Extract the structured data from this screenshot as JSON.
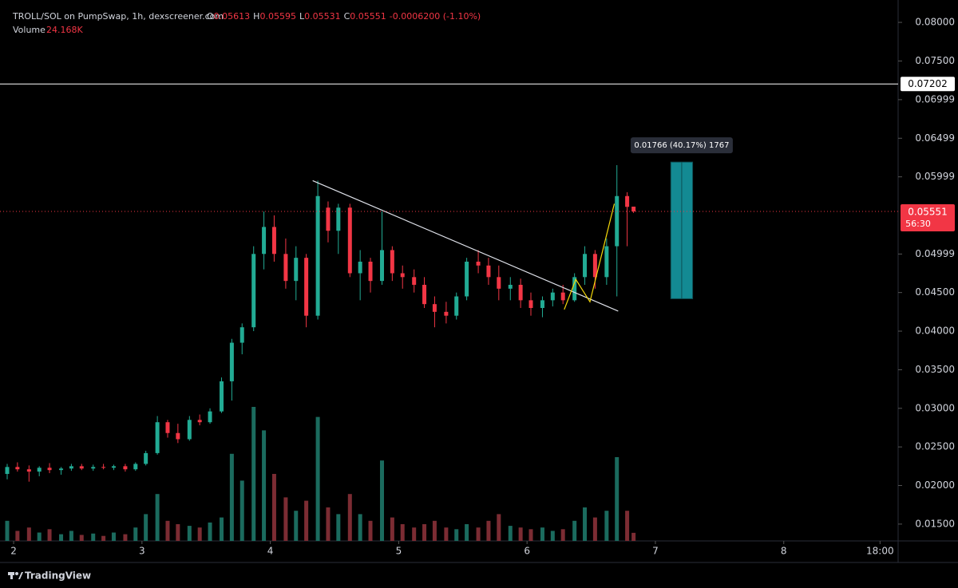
{
  "chart_data": {
    "type": "candlestick",
    "header": {
      "symbol": "TROLL/SOL on PumpSwap, 1h, dexscreener.com",
      "open_label": "O",
      "high_label": "H",
      "low_label": "L",
      "close_label": "C",
      "change_label": "-0.0006200 (-1.10%)",
      "volume_name": "Volume",
      "volume_label": "24.168K"
    },
    "countdown": "56:30",
    "brand": "TradingView",
    "colors": {
      "up": "#22ab94",
      "down": "#f23645",
      "up_volume": "#1b6b5e",
      "down_volume": "#7c2c33",
      "measure": "#138a93"
    },
    "xlim": [
      1.894,
      8.891
    ],
    "xticks": [
      2,
      3,
      4,
      5,
      6,
      7,
      8,
      {
        "value": 8.75,
        "label": "18:00"
      }
    ],
    "ylim": [
      0.01282,
      0.0829
    ],
    "yticks": [
      {
        "value": 0.08,
        "label": "0.08000"
      },
      {
        "value": 0.075,
        "label": "0.07500"
      },
      {
        "value": 0.06999,
        "label": "0.06999"
      },
      {
        "value": 0.06499,
        "label": "0.06499"
      },
      {
        "value": 0.05999,
        "label": "0.05999"
      },
      {
        "value": 0.04999,
        "label": "0.04999"
      },
      {
        "value": 0.045,
        "label": "0.04500"
      },
      {
        "value": 0.04,
        "label": "0.04000"
      },
      {
        "value": 0.035,
        "label": "0.03500"
      },
      {
        "value": 0.03,
        "label": "0.03000"
      },
      {
        "value": 0.025,
        "label": "0.02500"
      },
      {
        "value": 0.02,
        "label": "0.02000"
      },
      {
        "value": 0.015,
        "label": "0.01500"
      }
    ],
    "grid": false,
    "vlim": [
      0,
      1000000
    ],
    "candle_fields": [
      "x",
      "open",
      "high",
      "low",
      "close",
      "volume"
    ],
    "candles": [
      [
        1.95,
        0.0215,
        0.0228,
        0.0208,
        0.0224,
        60000
      ],
      [
        2.03,
        0.0224,
        0.023,
        0.0218,
        0.0221,
        30000
      ],
      [
        2.12,
        0.0221,
        0.0226,
        0.0205,
        0.0218,
        40000
      ],
      [
        2.2,
        0.0218,
        0.0225,
        0.0212,
        0.0223,
        25000
      ],
      [
        2.28,
        0.0223,
        0.0229,
        0.0216,
        0.022,
        35000
      ],
      [
        2.37,
        0.022,
        0.0224,
        0.0214,
        0.0222,
        20000
      ],
      [
        2.45,
        0.0222,
        0.0228,
        0.0219,
        0.0225,
        30000
      ],
      [
        2.53,
        0.0225,
        0.0228,
        0.022,
        0.0222,
        18000
      ],
      [
        2.62,
        0.0222,
        0.0227,
        0.0219,
        0.0224,
        22000
      ],
      [
        2.7,
        0.0224,
        0.0228,
        0.0221,
        0.0223,
        15000
      ],
      [
        2.78,
        0.0223,
        0.0227,
        0.022,
        0.0225,
        25000
      ],
      [
        2.87,
        0.0225,
        0.0228,
        0.0218,
        0.0221,
        20000
      ],
      [
        2.95,
        0.0221,
        0.023,
        0.0219,
        0.0228,
        40000
      ],
      [
        3.03,
        0.0228,
        0.0245,
        0.0226,
        0.0242,
        80000
      ],
      [
        3.12,
        0.0242,
        0.029,
        0.024,
        0.0282,
        140000
      ],
      [
        3.2,
        0.0282,
        0.0285,
        0.0262,
        0.0268,
        60000
      ],
      [
        3.28,
        0.0268,
        0.028,
        0.0255,
        0.026,
        50000
      ],
      [
        3.37,
        0.026,
        0.029,
        0.0258,
        0.0285,
        45000
      ],
      [
        3.45,
        0.0285,
        0.0292,
        0.0278,
        0.0282,
        40000
      ],
      [
        3.53,
        0.0282,
        0.03,
        0.028,
        0.0296,
        55000
      ],
      [
        3.62,
        0.0296,
        0.034,
        0.0294,
        0.0335,
        70000
      ],
      [
        3.7,
        0.0335,
        0.039,
        0.031,
        0.0385,
        260000
      ],
      [
        3.78,
        0.0385,
        0.041,
        0.037,
        0.0405,
        180000
      ],
      [
        3.87,
        0.0405,
        0.051,
        0.04,
        0.05,
        400000
      ],
      [
        3.95,
        0.05,
        0.0555,
        0.048,
        0.0535,
        330000
      ],
      [
        4.03,
        0.0535,
        0.055,
        0.049,
        0.05,
        200000
      ],
      [
        4.12,
        0.05,
        0.052,
        0.0455,
        0.0465,
        130000
      ],
      [
        4.2,
        0.0465,
        0.051,
        0.044,
        0.0495,
        90000
      ],
      [
        4.28,
        0.0495,
        0.05,
        0.0405,
        0.042,
        120000
      ],
      [
        4.37,
        0.042,
        0.0595,
        0.0415,
        0.0575,
        370000
      ],
      [
        4.45,
        0.056,
        0.0568,
        0.0515,
        0.053,
        100000
      ],
      [
        4.53,
        0.053,
        0.0565,
        0.05,
        0.056,
        80000
      ],
      [
        4.62,
        0.056,
        0.0565,
        0.047,
        0.0475,
        140000
      ],
      [
        4.7,
        0.0475,
        0.0505,
        0.044,
        0.049,
        80000
      ],
      [
        4.78,
        0.049,
        0.0495,
        0.045,
        0.0465,
        60000
      ],
      [
        4.87,
        0.0465,
        0.0555,
        0.046,
        0.0505,
        240000
      ],
      [
        4.95,
        0.0505,
        0.051,
        0.0465,
        0.0475,
        70000
      ],
      [
        5.03,
        0.0475,
        0.0485,
        0.0455,
        0.047,
        50000
      ],
      [
        5.12,
        0.047,
        0.048,
        0.045,
        0.046,
        40000
      ],
      [
        5.2,
        0.046,
        0.047,
        0.043,
        0.0435,
        50000
      ],
      [
        5.28,
        0.0435,
        0.0445,
        0.0405,
        0.0425,
        60000
      ],
      [
        5.37,
        0.0425,
        0.0438,
        0.041,
        0.042,
        40000
      ],
      [
        5.45,
        0.042,
        0.045,
        0.0415,
        0.0445,
        35000
      ],
      [
        5.53,
        0.0445,
        0.0495,
        0.044,
        0.049,
        50000
      ],
      [
        5.62,
        0.049,
        0.0505,
        0.0475,
        0.0485,
        40000
      ],
      [
        5.7,
        0.0485,
        0.0495,
        0.046,
        0.047,
        60000
      ],
      [
        5.78,
        0.047,
        0.0485,
        0.044,
        0.0455,
        80000
      ],
      [
        5.87,
        0.0455,
        0.047,
        0.044,
        0.046,
        45000
      ],
      [
        5.95,
        0.046,
        0.0468,
        0.043,
        0.044,
        40000
      ],
      [
        6.03,
        0.044,
        0.045,
        0.042,
        0.043,
        35000
      ],
      [
        6.12,
        0.043,
        0.0445,
        0.0418,
        0.044,
        40000
      ],
      [
        6.2,
        0.044,
        0.0455,
        0.0432,
        0.045,
        30000
      ],
      [
        6.28,
        0.045,
        0.046,
        0.0435,
        0.044,
        35000
      ],
      [
        6.37,
        0.044,
        0.0475,
        0.0438,
        0.047,
        60000
      ],
      [
        6.45,
        0.047,
        0.051,
        0.046,
        0.05,
        100000
      ],
      [
        6.53,
        0.05,
        0.0505,
        0.0455,
        0.047,
        70000
      ],
      [
        6.62,
        0.047,
        0.052,
        0.046,
        0.051,
        90000
      ],
      [
        6.7,
        0.051,
        0.0615,
        0.0445,
        0.0575,
        250000
      ],
      [
        6.78,
        0.0575,
        0.058,
        0.051,
        0.0561,
        90000
      ],
      [
        6.83,
        0.05613,
        0.05595,
        0.05531,
        0.05551,
        24168
      ]
    ],
    "hline": 0.07202,
    "trendline": {
      "x": [
        4.33,
        6.71
      ],
      "y": [
        0.0595,
        0.0426
      ]
    },
    "zigzag": {
      "x": [
        6.29,
        6.38,
        6.49,
        6.68
      ],
      "y": [
        0.0428,
        0.0467,
        0.0438,
        0.0565
      ]
    },
    "measure": {
      "x": [
        7.12,
        7.29
      ],
      "y": [
        0.0442,
        0.0619
      ],
      "label": "0.01766 (40.17%) 1767"
    }
  }
}
